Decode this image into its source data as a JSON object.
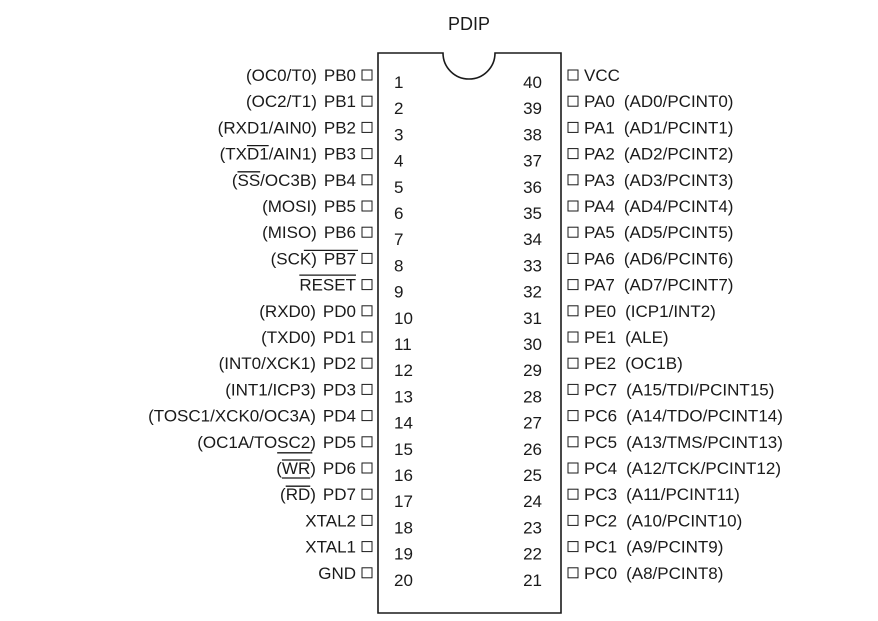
{
  "package": "PDIP",
  "left_pins": [
    {
      "num": "1",
      "name": "PB0",
      "func": "(OC0/T0)"
    },
    {
      "num": "2",
      "name": "PB1",
      "func": "(OC2/T1)"
    },
    {
      "num": "3",
      "name": "PB2",
      "func": "(RXD1/AIN0)"
    },
    {
      "num": "4",
      "name": "PB3",
      "func": "(TXD1/AIN1)"
    },
    {
      "num": "5",
      "name": "PB4",
      "func": "(SS/OC3B)"
    },
    {
      "num": "6",
      "name": "PB5",
      "func": "(MOSI)"
    },
    {
      "num": "7",
      "name": "PB6",
      "func": "(MISO)"
    },
    {
      "num": "8",
      "name": "PB7",
      "func": "(SCK)"
    },
    {
      "num": "9",
      "name": "RESET",
      "func": ""
    },
    {
      "num": "10",
      "name": "PD0",
      "func": "(RXD0)"
    },
    {
      "num": "11",
      "name": "PD1",
      "func": "(TXD0)"
    },
    {
      "num": "12",
      "name": "PD2",
      "func": "(INT0/XCK1)"
    },
    {
      "num": "13",
      "name": "PD3",
      "func": "(INT1/ICP3)"
    },
    {
      "num": "14",
      "name": "PD4",
      "func": "(TOSC1/XCK0/OC3A)"
    },
    {
      "num": "15",
      "name": "PD5",
      "func": "(OC1A/TOSC2)"
    },
    {
      "num": "16",
      "name": "PD6",
      "func": "(WR)"
    },
    {
      "num": "17",
      "name": "PD7",
      "func": "(RD)"
    },
    {
      "num": "18",
      "name": "XTAL2",
      "func": ""
    },
    {
      "num": "19",
      "name": "XTAL1",
      "func": ""
    },
    {
      "num": "20",
      "name": "GND",
      "func": ""
    }
  ],
  "right_pins": [
    {
      "num": "40",
      "name": "VCC",
      "func": ""
    },
    {
      "num": "39",
      "name": "PA0",
      "func": "(AD0/PCINT0)"
    },
    {
      "num": "38",
      "name": "PA1",
      "func": "(AD1/PCINT1)"
    },
    {
      "num": "37",
      "name": "PA2",
      "func": "(AD2/PCINT2)"
    },
    {
      "num": "36",
      "name": "PA3",
      "func": "(AD3/PCINT3)"
    },
    {
      "num": "35",
      "name": "PA4",
      "func": "(AD4/PCINT4)"
    },
    {
      "num": "34",
      "name": "PA5",
      "func": "(AD5/PCINT5)"
    },
    {
      "num": "33",
      "name": "PA6",
      "func": "(AD6/PCINT6)"
    },
    {
      "num": "32",
      "name": "PA7",
      "func": "(AD7/PCINT7)"
    },
    {
      "num": "31",
      "name": "PE0",
      "func": "(ICP1/INT2)"
    },
    {
      "num": "30",
      "name": "PE1",
      "func": "(ALE)"
    },
    {
      "num": "29",
      "name": "PE2",
      "func": "(OC1B)"
    },
    {
      "num": "28",
      "name": "PC7",
      "func": "(A15/TDI/PCINT15)"
    },
    {
      "num": "27",
      "name": "PC6",
      "func": "(A14/TDO/PCINT14)"
    },
    {
      "num": "26",
      "name": "PC5",
      "func": "(A13/TMS/PCINT13)"
    },
    {
      "num": "25",
      "name": "PC4",
      "func": "(A12/TCK/PCINT12)"
    },
    {
      "num": "24",
      "name": "PC3",
      "func": "(A11/PCINT11)"
    },
    {
      "num": "23",
      "name": "PC2",
      "func": "(A10/PCINT10)"
    },
    {
      "num": "22",
      "name": "PC1",
      "func": "(A9/PCINT9)"
    },
    {
      "num": "21",
      "name": "PC0",
      "func": "(A8/PCINT8)"
    }
  ]
}
